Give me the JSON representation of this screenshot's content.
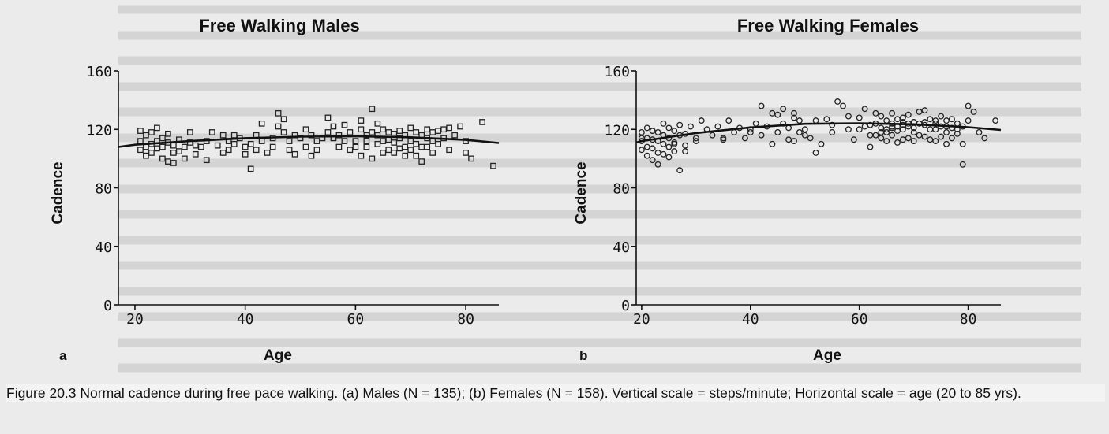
{
  "chart_data": [
    {
      "panel_letter": "a",
      "type": "scatter",
      "title": "Free Walking Males",
      "xlabel": "Age",
      "ylabel": "Cadence",
      "xlim": [
        17,
        86
      ],
      "ylim": [
        0,
        160
      ],
      "xticks": [
        20,
        40,
        60,
        80
      ],
      "yticks": [
        0,
        40,
        80,
        120,
        160
      ],
      "marker": "square",
      "grid": false,
      "trend_line": {
        "x": [
          17,
          20,
          30,
          40,
          50,
          60,
          70,
          80,
          86
        ],
        "y": [
          108,
          109.5,
          112,
          114,
          115,
          115.3,
          114.6,
          112.8,
          110.7
        ]
      },
      "series": [
        {
          "x": [
            21,
            21,
            21,
            22,
            22,
            22,
            23,
            23,
            23,
            24,
            24,
            24,
            25,
            25,
            25,
            26,
            26,
            26,
            27,
            27,
            27,
            28,
            28,
            29,
            29,
            30,
            30,
            31,
            31,
            32,
            33,
            33,
            34,
            35,
            36,
            36,
            37,
            37,
            38,
            38,
            39,
            40,
            40,
            41,
            41,
            42,
            42,
            43,
            43,
            44,
            45,
            45,
            46,
            46,
            47,
            47,
            48,
            48,
            49,
            49,
            50,
            51,
            51,
            52,
            52,
            53,
            53,
            54,
            55,
            55,
            56,
            56,
            57,
            57,
            58,
            58,
            59,
            59,
            60,
            60,
            61,
            61,
            61,
            62,
            62,
            62,
            63,
            63,
            63,
            64,
            64,
            64,
            65,
            65,
            65,
            66,
            66,
            66,
            67,
            67,
            67,
            68,
            68,
            68,
            69,
            69,
            69,
            70,
            70,
            70,
            71,
            71,
            71,
            72,
            72,
            72,
            73,
            73,
            73,
            74,
            74,
            74,
            75,
            75,
            76,
            76,
            77,
            77,
            78,
            79,
            80,
            80,
            81,
            83,
            85
          ],
          "y": [
            119,
            112,
            106,
            116,
            108,
            102,
            118,
            110,
            104,
            121,
            112,
            107,
            114,
            108,
            100,
            117,
            111,
            98,
            109,
            104,
            97,
            113,
            105,
            108,
            100,
            111,
            118,
            103,
            109,
            108,
            99,
            112,
            118,
            109,
            116,
            104,
            112,
            106,
            116,
            110,
            114,
            108,
            103,
            93,
            110,
            116,
            106,
            124,
            112,
            104,
            114,
            108,
            131,
            122,
            127,
            118,
            112,
            106,
            116,
            103,
            114,
            108,
            120,
            116,
            102,
            112,
            106,
            114,
            128,
            118,
            122,
            114,
            116,
            108,
            123,
            112,
            106,
            118,
            112,
            108,
            126,
            120,
            102,
            116,
            112,
            108,
            134,
            118,
            100,
            124,
            116,
            110,
            120,
            112,
            104,
            118,
            113,
            106,
            117,
            111,
            104,
            119,
            114,
            107,
            116,
            108,
            102,
            121,
            112,
            106,
            118,
            110,
            102,
            116,
            108,
            98,
            120,
            114,
            108,
            118,
            112,
            104,
            119,
            110,
            120,
            114,
            121,
            106,
            116,
            122,
            112,
            104,
            100,
            125,
            95
          ]
        }
      ]
    },
    {
      "panel_letter": "b",
      "type": "scatter",
      "title": "Free Walking Females",
      "xlabel": "Age",
      "ylabel": "Cadence",
      "xlim": [
        19,
        86
      ],
      "ylim": [
        0,
        160
      ],
      "xticks": [
        20,
        40,
        60,
        80
      ],
      "yticks": [
        0,
        40,
        80,
        120,
        160
      ],
      "marker": "circle",
      "grid": false,
      "trend_line": {
        "x": [
          19,
          20,
          30,
          40,
          50,
          60,
          70,
          80,
          86
        ],
        "y": [
          111,
          112,
          117.5,
          121.3,
          123.8,
          124.2,
          123.5,
          121.5,
          119.6
        ]
      },
      "series": [
        {
          "x": [
            20,
            20,
            20,
            21,
            21,
            21,
            21,
            22,
            22,
            22,
            22,
            23,
            23,
            23,
            23,
            24,
            24,
            24,
            24,
            25,
            25,
            25,
            25,
            26,
            26,
            26,
            27,
            27,
            27,
            28,
            28,
            29,
            30,
            31,
            32,
            33,
            34,
            35,
            36,
            37,
            38,
            39,
            40,
            41,
            42,
            42,
            43,
            44,
            45,
            45,
            46,
            46,
            47,
            47,
            48,
            48,
            49,
            49,
            50,
            50,
            51,
            52,
            53,
            54,
            55,
            56,
            57,
            58,
            59,
            60,
            60,
            61,
            61,
            62,
            62,
            63,
            63,
            63,
            64,
            64,
            64,
            65,
            65,
            65,
            66,
            66,
            66,
            67,
            67,
            67,
            68,
            68,
            68,
            69,
            69,
            69,
            70,
            70,
            70,
            71,
            71,
            71,
            72,
            72,
            72,
            73,
            73,
            73,
            74,
            74,
            74,
            75,
            75,
            75,
            76,
            76,
            76,
            77,
            77,
            77,
            78,
            78,
            79,
            79,
            80,
            80,
            81,
            82,
            83,
            85,
            20,
            22,
            24,
            26,
            28,
            30,
            35,
            40,
            44,
            48,
            52,
            55,
            58,
            62,
            64,
            66,
            68,
            70,
            72,
            74,
            76,
            78,
            65,
            66,
            67,
            68,
            69,
            79
          ],
          "y": [
            118,
            112,
            106,
            121,
            114,
            108,
            102,
            119,
            113,
            107,
            99,
            118,
            112,
            104,
            96,
            124,
            116,
            110,
            103,
            121,
            114,
            108,
            101,
            119,
            111,
            105,
            123,
            116,
            92,
            117,
            109,
            122,
            114,
            126,
            120,
            116,
            122,
            113,
            126,
            118,
            121,
            114,
            118,
            124,
            136,
            116,
            122,
            110,
            130,
            118,
            134,
            124,
            121,
            113,
            131,
            112,
            126,
            118,
            120,
            116,
            114,
            104,
            110,
            127,
            118,
            139,
            136,
            120,
            113,
            128,
            120,
            134,
            122,
            116,
            108,
            131,
            124,
            116,
            129,
            121,
            114,
            126,
            118,
            112,
            131,
            124,
            116,
            127,
            119,
            111,
            128,
            120,
            113,
            130,
            122,
            114,
            125,
            118,
            112,
            132,
            124,
            116,
            133,
            125,
            115,
            127,
            120,
            113,
            126,
            120,
            112,
            129,
            122,
            115,
            126,
            118,
            110,
            127,
            121,
            114,
            124,
            117,
            122,
            96,
            136,
            126,
            132,
            118,
            114,
            126,
            114,
            119,
            116,
            110,
            105,
            112,
            114,
            120,
            131,
            128,
            126,
            123,
            129,
            123,
            118,
            122,
            125,
            121,
            123,
            124,
            122,
            120,
            120,
            121,
            122,
            123,
            124,
            110
          ]
        }
      ]
    }
  ],
  "caption": {
    "lead": "Figure 20.3 Normal cadence during free pace walking.",
    "body": " (a) Males (N = 135); (b) Females (N = 158). Vertical scale = steps/minute; Horizontal scale = age (20 to 85 yrs)."
  }
}
